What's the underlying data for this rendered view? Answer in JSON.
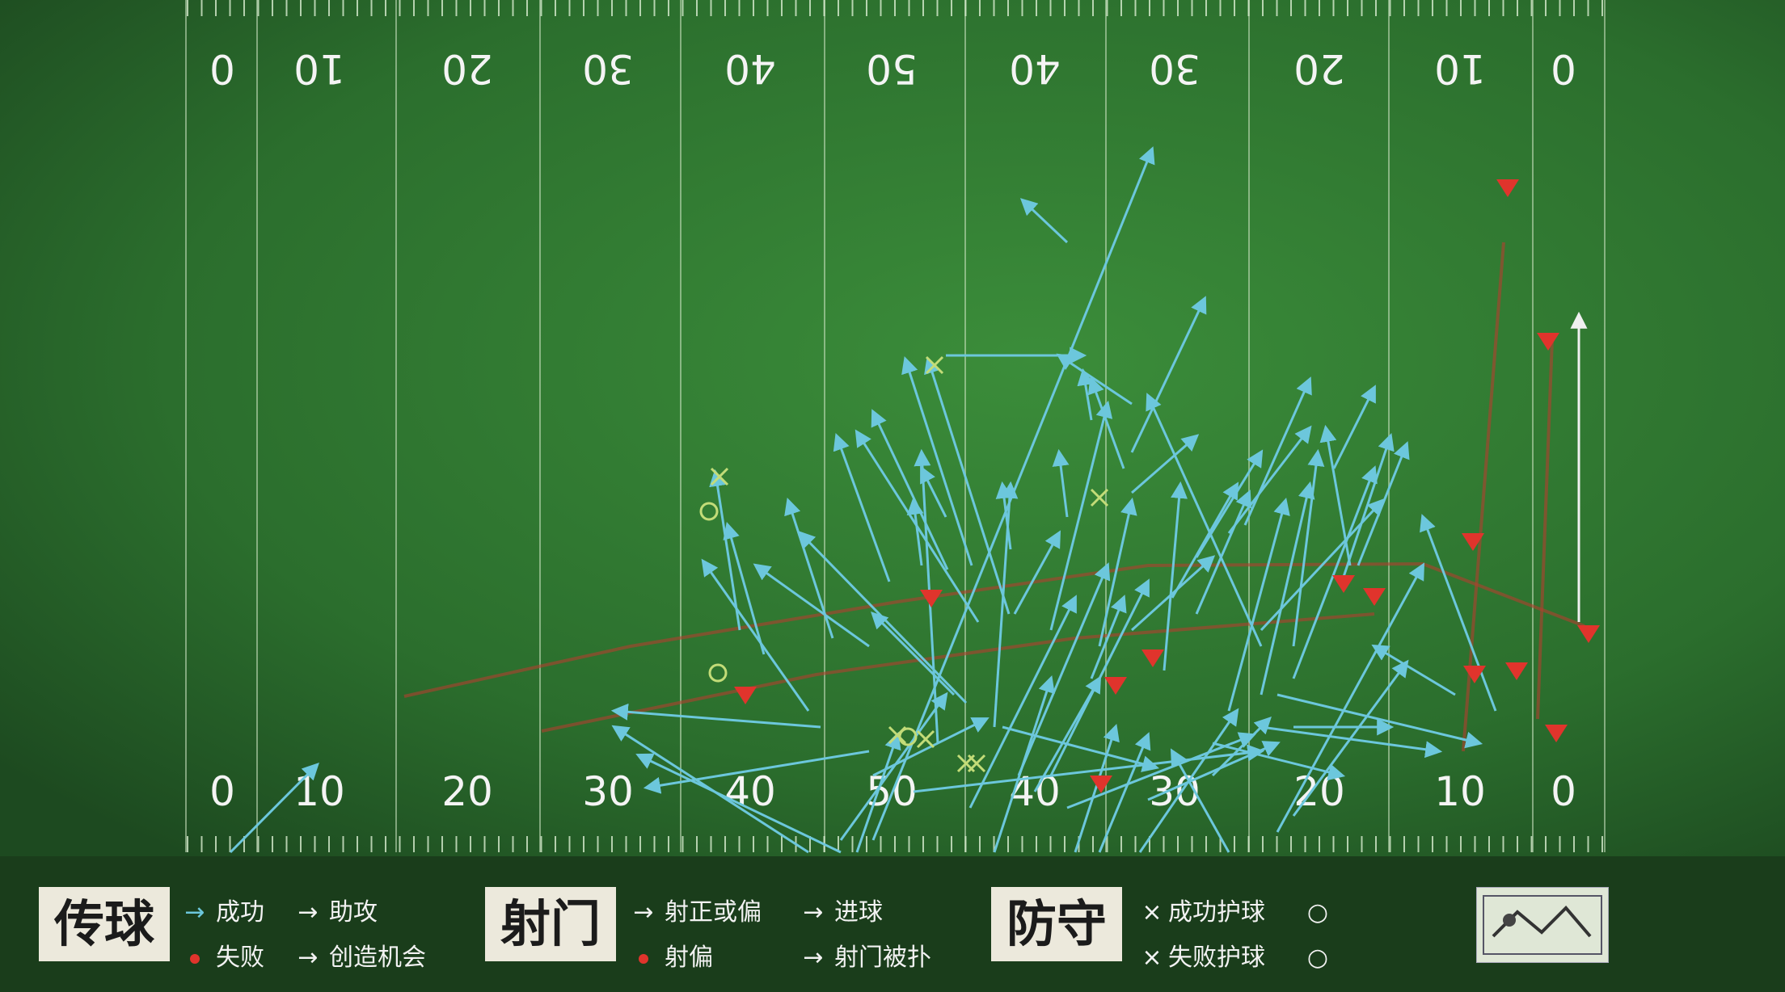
{
  "field": {
    "top_numbers": [
      "0",
      "10",
      "20",
      "30",
      "40",
      "50",
      "40",
      "30",
      "20",
      "10",
      "0"
    ],
    "bottom_numbers": [
      "0",
      "10",
      "20",
      "30",
      "40",
      "50",
      "40",
      "30",
      "20",
      "10",
      "0"
    ]
  },
  "legend": {
    "pass": {
      "title": "传球",
      "success": "成功",
      "assist": "助攻",
      "fail": "失败",
      "chance": "创造机会"
    },
    "shot": {
      "title": "射门",
      "on_target": "射正或偏",
      "goal": "进球",
      "blocked": "射偏",
      "shot_to": "射门被扑"
    },
    "defense": {
      "title": "防守",
      "won": "成功护球",
      "lost": "失败护球",
      "o1": "",
      "o2": ""
    },
    "corner_text": [
      "",
      ""
    ]
  },
  "colors": {
    "pass": "#6cc7dc",
    "fail": "#e0342c",
    "field": "#2f7a32",
    "marker": "#b8d76a"
  }
}
